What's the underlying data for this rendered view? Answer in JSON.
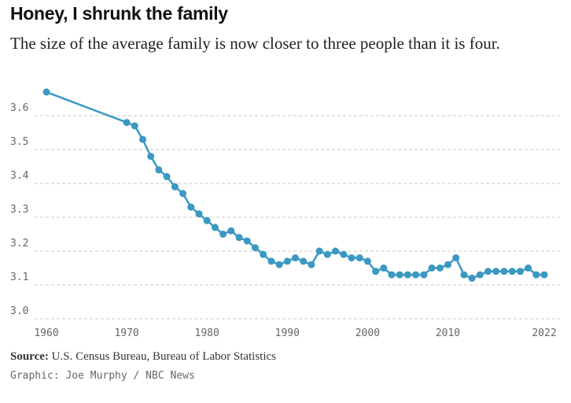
{
  "header": {
    "title": "Honey, I shrunk the family",
    "subtitle": "The size of the average family is now closer to three people than it is four."
  },
  "footer": {
    "source_label": "Source:",
    "source_text": "U.S. Census Bureau, Bureau of Labor Statistics",
    "credit": "Graphic: Joe Murphy / NBC News"
  },
  "colors": {
    "line": "#3a98c2",
    "grid": "#c8c8c8",
    "axis_text": "#666666"
  },
  "chart_data": {
    "type": "line",
    "xlim": [
      1960,
      2022
    ],
    "ylim": [
      3.0,
      3.7
    ],
    "x_ticks": [
      1960,
      1970,
      1980,
      1990,
      2000,
      2010,
      2022
    ],
    "x_tick_labels": [
      "1960",
      "1970",
      "1980",
      "1990",
      "2000",
      "2010",
      "2022"
    ],
    "y_ticks": [
      3.0,
      3.1,
      3.2,
      3.3,
      3.4,
      3.5,
      3.6
    ],
    "y_tick_labels": [
      "3.0",
      "3.1",
      "3.2",
      "3.3",
      "3.4",
      "3.5",
      "3.6"
    ],
    "grid": "horizontal dashed",
    "series": [
      {
        "x": [
          1960,
          1970,
          1971,
          1972,
          1973,
          1974,
          1975,
          1976,
          1977,
          1978,
          1979,
          1980,
          1981,
          1982,
          1983,
          1984,
          1985,
          1986,
          1987,
          1988,
          1989,
          1990,
          1991,
          1992,
          1993,
          1994,
          1995,
          1996,
          1997,
          1998,
          1999,
          2000,
          2001,
          2002,
          2003,
          2004,
          2005,
          2006,
          2007,
          2008,
          2009,
          2010,
          2011,
          2012,
          2013,
          2014,
          2015,
          2016,
          2017,
          2018,
          2019,
          2020,
          2021,
          2022
        ],
        "values": [
          3.67,
          3.58,
          3.57,
          3.53,
          3.48,
          3.44,
          3.42,
          3.39,
          3.37,
          3.33,
          3.31,
          3.29,
          3.27,
          3.25,
          3.26,
          3.24,
          3.23,
          3.21,
          3.19,
          3.17,
          3.16,
          3.17,
          3.18,
          3.17,
          3.16,
          3.2,
          3.19,
          3.2,
          3.19,
          3.18,
          3.18,
          3.17,
          3.14,
          3.15,
          3.13,
          3.13,
          3.13,
          3.13,
          3.13,
          3.15,
          3.15,
          3.16,
          3.18,
          3.13,
          3.12,
          3.13,
          3.14,
          3.14,
          3.14,
          3.14,
          3.14,
          3.15,
          3.13,
          3.13
        ]
      }
    ]
  }
}
